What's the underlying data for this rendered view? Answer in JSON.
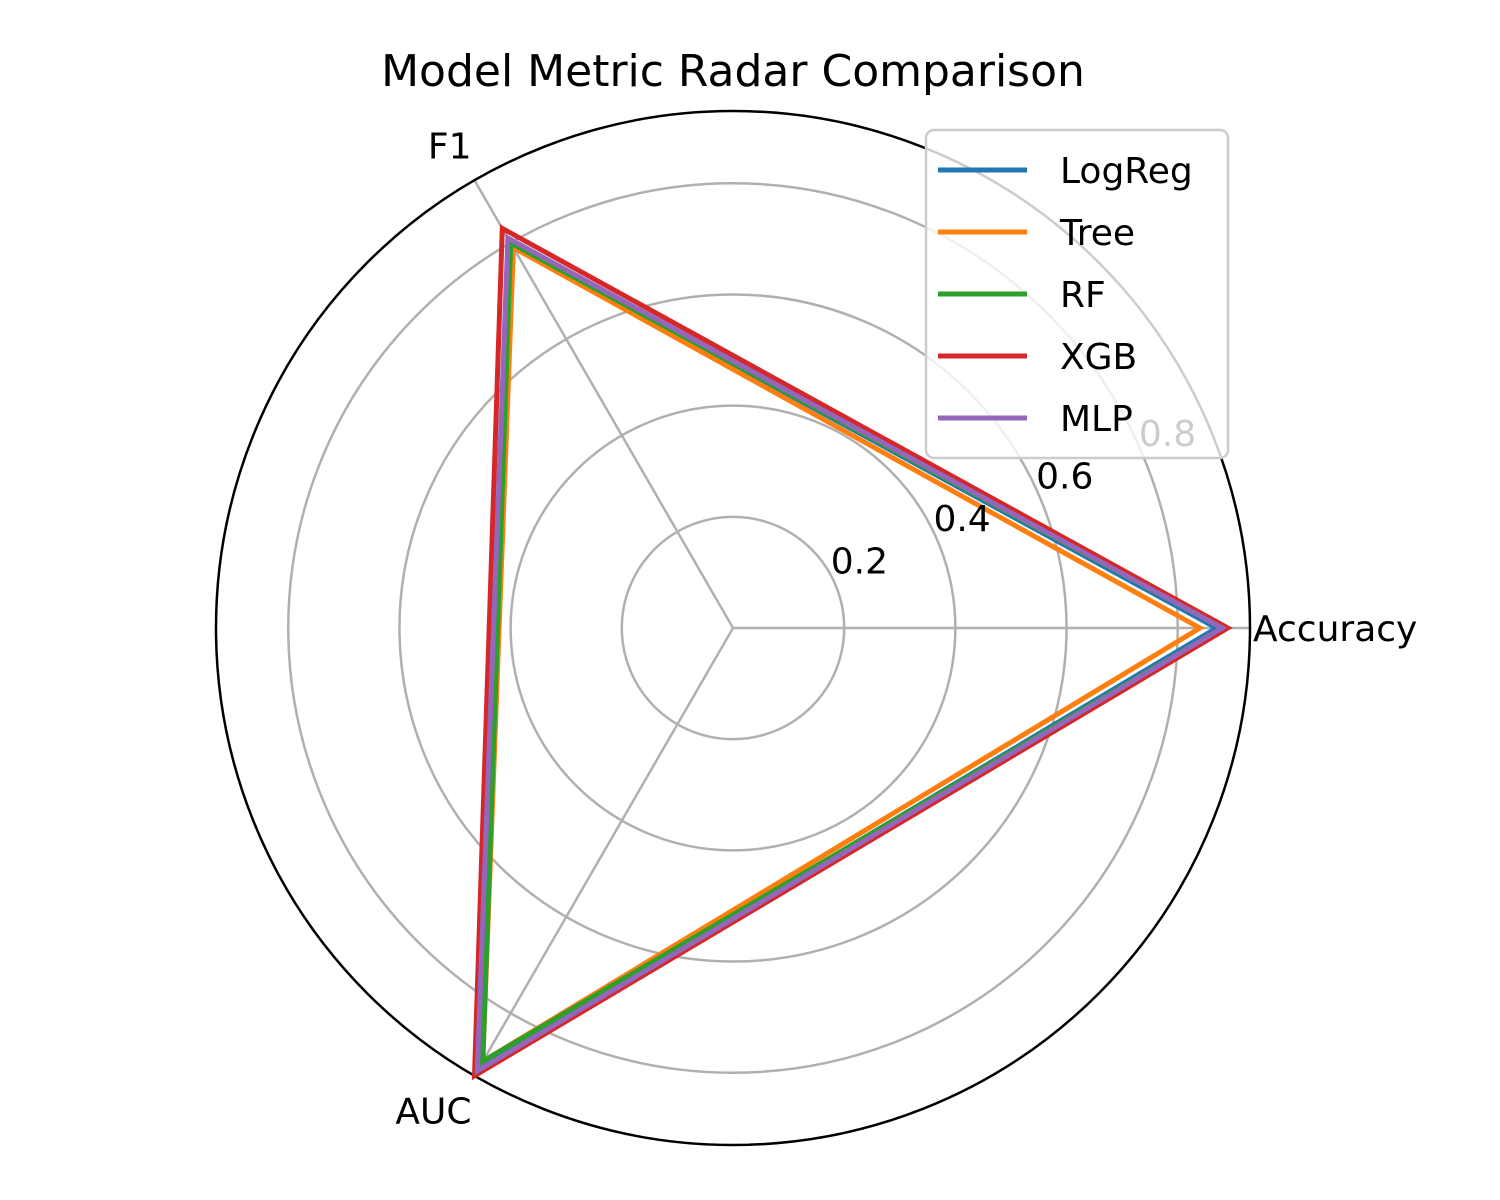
{
  "chart_data": {
    "type": "radar",
    "title": "Model Metric Radar Comparison",
    "axes": [
      "Accuracy",
      "F1",
      "AUC"
    ],
    "rlim": [
      0,
      0.93
    ],
    "rticks": [
      0.2,
      0.4,
      0.6,
      0.8
    ],
    "rtick_labels": [
      "0.2",
      "0.4",
      "0.6",
      "0.8"
    ],
    "grid": true,
    "legend_position": "top-right",
    "series": [
      {
        "name": "LogReg",
        "color": "#1f77b4",
        "values": [
          0.87,
          0.8,
          0.91
        ]
      },
      {
        "name": "Tree",
        "color": "#ff7f0e",
        "values": [
          0.84,
          0.79,
          0.9
        ]
      },
      {
        "name": "RF",
        "color": "#2ca02c",
        "values": [
          0.88,
          0.8,
          0.9
        ]
      },
      {
        "name": "XGB",
        "color": "#d62728",
        "values": [
          0.89,
          0.83,
          0.93
        ]
      },
      {
        "name": "MLP",
        "color": "#9467bd",
        "values": [
          0.88,
          0.81,
          0.92
        ]
      }
    ]
  }
}
